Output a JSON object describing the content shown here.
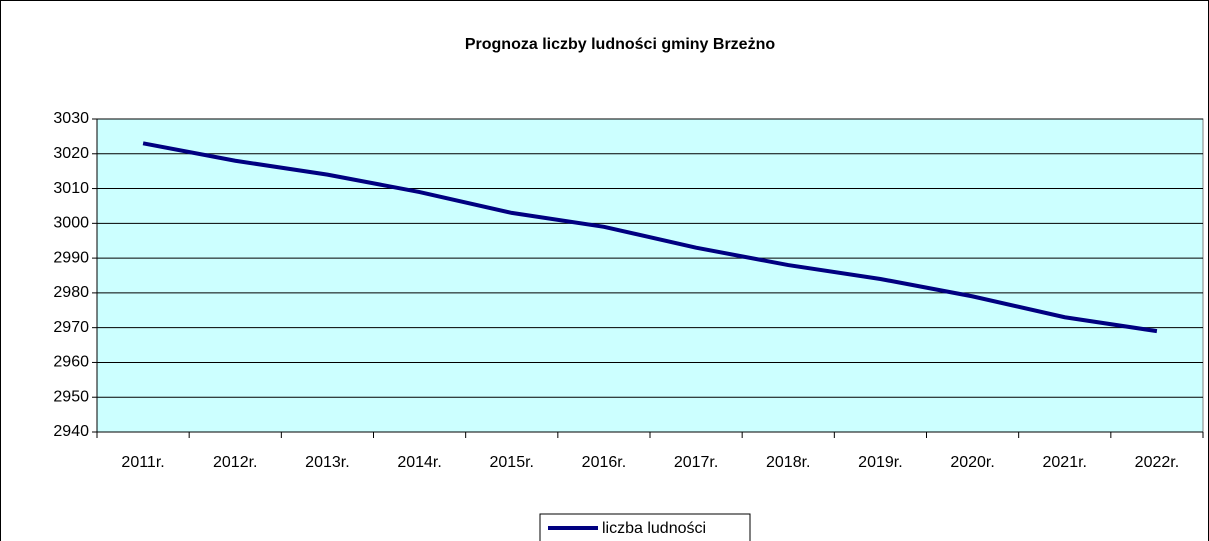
{
  "chart_data": {
    "type": "line",
    "title": "Prognoza liczby ludności gminy Brzeżno",
    "categories": [
      "2011r.",
      "2012r.",
      "2013r.",
      "2014r.",
      "2015r.",
      "2016r.",
      "2017r.",
      "2018r.",
      "2019r.",
      "2020r.",
      "2021r.",
      "2022r."
    ],
    "series": [
      {
        "name": "liczba ludności",
        "color": "#000080",
        "values": [
          3023,
          3018,
          3014,
          3009,
          3003,
          2999,
          2993,
          2988,
          2984,
          2979,
          2973,
          2969
        ]
      }
    ],
    "ylim": [
      2940,
      3030
    ],
    "yticks": [
      2940,
      2950,
      2960,
      2970,
      2980,
      2990,
      3000,
      3010,
      3020,
      3030
    ],
    "grid": true,
    "legend": "bottom"
  }
}
